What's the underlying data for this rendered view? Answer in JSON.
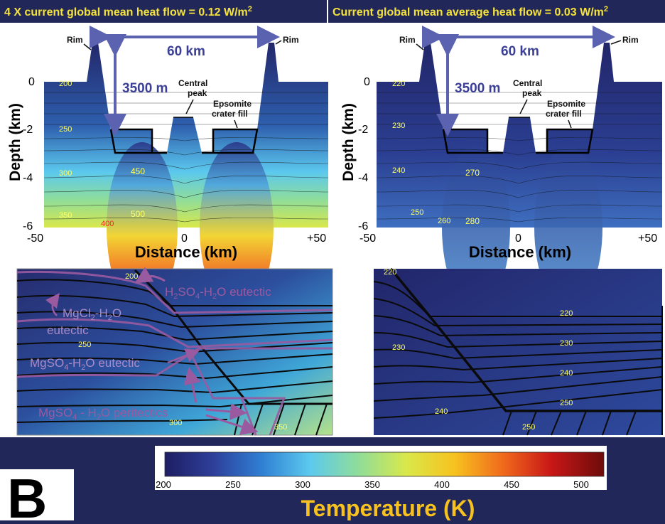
{
  "panel_label": "B",
  "left": {
    "header": "4 X current global mean heat flow = 0.12 W/m",
    "header_sup": "2",
    "width_label": "60 km",
    "depth_label": "3500 m",
    "rim_label": "Rim",
    "central_peak": [
      "Central",
      "peak"
    ],
    "fill_label": [
      "Epsomite",
      "crater fill"
    ],
    "ylabel": "Depth (km)",
    "xlabel": "Distance (km)",
    "yticks": [
      "0",
      "-2",
      "-4",
      "-6"
    ],
    "xticks": [
      "-50",
      "0",
      "+50"
    ],
    "temps": [
      {
        "t": "200",
        "c": "#ffff66"
      },
      {
        "t": "250",
        "c": "#ffff66"
      },
      {
        "t": "300",
        "c": "#ffff66"
      },
      {
        "t": "350",
        "c": "#ffff66"
      },
      {
        "t": "400",
        "c": "#ff2222"
      },
      {
        "t": "450",
        "c": "#ffff66"
      },
      {
        "t": "500",
        "c": "#ffff66"
      }
    ]
  },
  "right": {
    "header": "Current global mean average heat flow = 0.03 W/m",
    "header_sup": "2",
    "width_label": "60 km",
    "depth_label": "3500 m",
    "rim_label": "Rim",
    "central_peak": [
      "Central",
      "peak"
    ],
    "fill_label": [
      "Epsomite",
      "crater fill"
    ],
    "ylabel": "Depth (km)",
    "xlabel": "Distance (km)",
    "yticks": [
      "0",
      "-2",
      "-4",
      "-6"
    ],
    "xticks": [
      "-50",
      "0",
      "+50"
    ],
    "temps": [
      "220",
      "230",
      "240",
      "250",
      "260",
      "270",
      "280"
    ]
  },
  "zoom_left": {
    "temps": [
      "200",
      "250",
      "300",
      "350"
    ],
    "labels": {
      "h2so4_a": "H",
      "h2so4_b": "2",
      "h2so4_c": "SO",
      "h2so4_d": "4",
      "h2so4_e": "-H",
      "h2so4_f": "2",
      "h2so4_g": "O eutectic",
      "mgcl2_a": "MgCl",
      "mgcl2_b": "2",
      "mgcl2_c": "-H",
      "mgcl2_d": "2",
      "mgcl2_e": "O",
      "mgcl2_f": "eutectic",
      "mgso4_a": "MgSO",
      "mgso4_b": "4",
      "mgso4_c": "-H",
      "mgso4_d": "2",
      "mgso4_e": "O eutectic",
      "peri_a": "MgSO",
      "peri_b": "4",
      "peri_c": " - H",
      "peri_d": "2",
      "peri_e": "O peritectics"
    }
  },
  "zoom_right": {
    "temps": [
      "220",
      "220",
      "230",
      "230",
      "240",
      "240",
      "250",
      "250"
    ]
  },
  "colorbar": {
    "ticks": [
      "200",
      "250",
      "300",
      "350",
      "400",
      "450",
      "500"
    ],
    "label": "Temperature (K)",
    "colors": [
      "#1e1e63",
      "#2e3f9a",
      "#2f7fd3",
      "#5cc9ee",
      "#8fdd9a",
      "#d9e84a",
      "#f7c21f",
      "#f06a1c",
      "#c81717",
      "#6e0b0b"
    ]
  }
}
